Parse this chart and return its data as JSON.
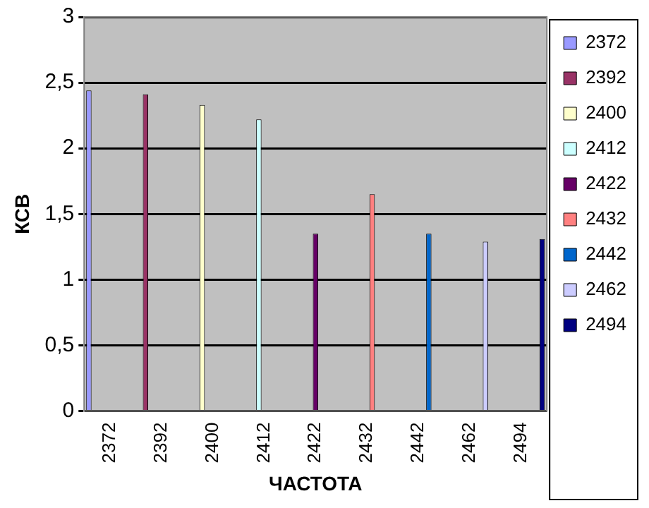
{
  "chart_data": {
    "type": "bar",
    "xlabel": "ЧАСТОТА",
    "ylabel": "КСВ",
    "categories": [
      "2372",
      "2392",
      "2400",
      "2412",
      "2422",
      "2432",
      "2442",
      "2462",
      "2494"
    ],
    "series": [
      {
        "name": "2372",
        "color": "#9999ff",
        "values": [
          2.44,
          null,
          null,
          null,
          null,
          null,
          null,
          null,
          null
        ]
      },
      {
        "name": "2392",
        "color": "#993366",
        "values": [
          null,
          2.41,
          null,
          null,
          null,
          null,
          null,
          null,
          null
        ]
      },
      {
        "name": "2400",
        "color": "#ffffcc",
        "values": [
          null,
          null,
          2.33,
          null,
          null,
          null,
          null,
          null,
          null
        ]
      },
      {
        "name": "2412",
        "color": "#ccffff",
        "values": [
          null,
          null,
          null,
          2.22,
          null,
          null,
          null,
          null,
          null
        ]
      },
      {
        "name": "2422",
        "color": "#660066",
        "values": [
          null,
          null,
          null,
          null,
          1.35,
          null,
          null,
          null,
          null
        ]
      },
      {
        "name": "2432",
        "color": "#ff8080",
        "values": [
          null,
          null,
          null,
          null,
          null,
          1.65,
          null,
          null,
          null
        ]
      },
      {
        "name": "2442",
        "color": "#0066cc",
        "values": [
          null,
          null,
          null,
          null,
          null,
          null,
          1.35,
          null,
          null
        ]
      },
      {
        "name": "2462",
        "color": "#ccccff",
        "values": [
          null,
          null,
          null,
          null,
          null,
          null,
          null,
          1.29,
          null
        ]
      },
      {
        "name": "2494",
        "color": "#000080",
        "values": [
          null,
          null,
          null,
          null,
          null,
          null,
          null,
          null,
          1.31
        ]
      }
    ],
    "ylim": [
      0,
      3
    ],
    "yticks": [
      0,
      {
        "value": 0.5,
        "label": "0,5"
      },
      1,
      {
        "value": 1.5,
        "label": "1,5"
      },
      2,
      {
        "value": 2.5,
        "label": "2,5"
      },
      3
    ],
    "grid": "y",
    "legend": "right"
  }
}
